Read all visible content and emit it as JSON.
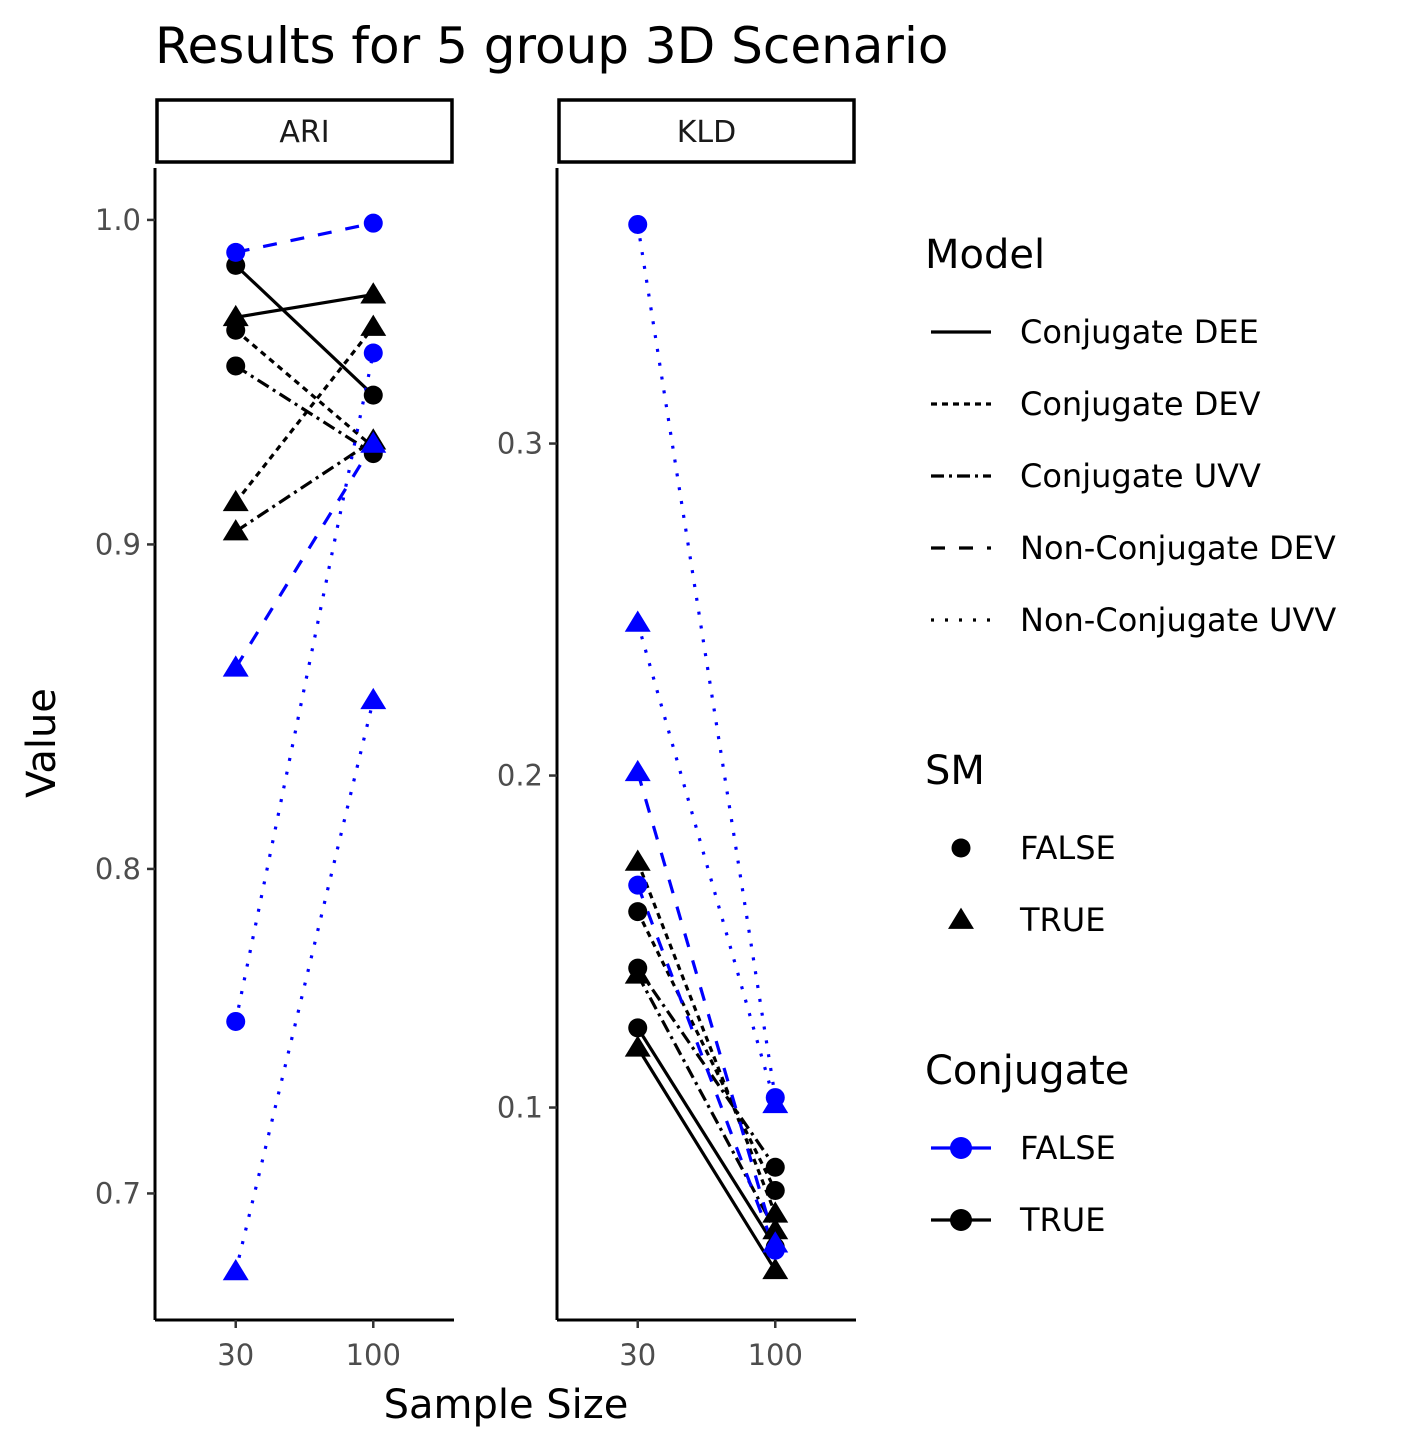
{
  "chart_data": {
    "type": "line",
    "title": "Results for 5 group 3D Scenario",
    "xlabel": "Sample Size",
    "ylabel": "Value",
    "x": [
      30,
      100
    ],
    "colors": {
      "FALSE": "#0000ff",
      "TRUE": "#000000"
    },
    "panels": [
      {
        "name": "ARI",
        "ylim": [
          0.661,
          1.016
        ],
        "yticks": [
          0.7,
          0.8,
          0.9,
          1.0
        ],
        "ytick_labels": [
          "0.7",
          "0.8",
          "0.9",
          "1.0"
        ],
        "xtick_labels": [
          "30",
          "100"
        ],
        "series": [
          {
            "model": "Conjugate DEE",
            "sm": "FALSE",
            "conjugate": "TRUE",
            "values": [
              0.986,
              0.946
            ]
          },
          {
            "model": "Conjugate DEE",
            "sm": "TRUE",
            "conjugate": "TRUE",
            "values": [
              0.97,
              0.977
            ]
          },
          {
            "model": "Conjugate DEV",
            "sm": "FALSE",
            "conjugate": "TRUE",
            "values": [
              0.966,
              0.93
            ]
          },
          {
            "model": "Conjugate DEV",
            "sm": "TRUE",
            "conjugate": "TRUE",
            "values": [
              0.913,
              0.967
            ]
          },
          {
            "model": "Conjugate UVV",
            "sm": "FALSE",
            "conjugate": "TRUE",
            "values": [
              0.955,
              0.928
            ]
          },
          {
            "model": "Conjugate UVV",
            "sm": "TRUE",
            "conjugate": "TRUE",
            "values": [
              0.904,
              0.932
            ]
          },
          {
            "model": "Non-Conjugate DEV",
            "sm": "FALSE",
            "conjugate": "FALSE",
            "values": [
              0.99,
              0.999
            ]
          },
          {
            "model": "Non-Conjugate DEV",
            "sm": "TRUE",
            "conjugate": "FALSE",
            "values": [
              0.862,
              0.931
            ]
          },
          {
            "model": "Non-Conjugate UVV",
            "sm": "FALSE",
            "conjugate": "FALSE",
            "values": [
              0.753,
              0.959
            ]
          },
          {
            "model": "Non-Conjugate UVV",
            "sm": "TRUE",
            "conjugate": "FALSE",
            "values": [
              0.676,
              0.852
            ]
          }
        ]
      },
      {
        "name": "KLD",
        "ylim": [
          0.036,
          0.383
        ],
        "yticks": [
          0.1,
          0.2,
          0.3
        ],
        "ytick_labels": [
          "0.1",
          "0.2",
          "0.3"
        ],
        "xtick_labels": [
          "30",
          "100"
        ],
        "series": [
          {
            "model": "Conjugate DEE",
            "sm": "FALSE",
            "conjugate": "TRUE",
            "values": [
              0.124,
              0.058
            ]
          },
          {
            "model": "Conjugate DEE",
            "sm": "TRUE",
            "conjugate": "TRUE",
            "values": [
              0.118,
              0.051
            ]
          },
          {
            "model": "Conjugate DEV",
            "sm": "FALSE",
            "conjugate": "TRUE",
            "values": [
              0.159,
              0.075
            ]
          },
          {
            "model": "Conjugate DEV",
            "sm": "TRUE",
            "conjugate": "TRUE",
            "values": [
              0.174,
              0.068
            ]
          },
          {
            "model": "Conjugate UVV",
            "sm": "FALSE",
            "conjugate": "TRUE",
            "values": [
              0.142,
              0.082
            ]
          },
          {
            "model": "Conjugate UVV",
            "sm": "TRUE",
            "conjugate": "TRUE",
            "values": [
              0.14,
              0.063
            ]
          },
          {
            "model": "Non-Conjugate DEV",
            "sm": "FALSE",
            "conjugate": "FALSE",
            "values": [
              0.167,
              0.057
            ]
          },
          {
            "model": "Non-Conjugate DEV",
            "sm": "TRUE",
            "conjugate": "FALSE",
            "values": [
              0.201,
              0.059
            ]
          },
          {
            "model": "Non-Conjugate UVV",
            "sm": "FALSE",
            "conjugate": "FALSE",
            "values": [
              0.366,
              0.103
            ]
          },
          {
            "model": "Non-Conjugate UVV",
            "sm": "TRUE",
            "conjugate": "FALSE",
            "values": [
              0.246,
              0.101
            ]
          }
        ]
      }
    ],
    "legend": {
      "placement": "right",
      "model": {
        "title": "Model",
        "items": [
          {
            "label": "Conjugate DEE",
            "linetype": "solid"
          },
          {
            "label": "Conjugate DEV",
            "linetype": "dotted-dense"
          },
          {
            "label": "Conjugate UVV",
            "linetype": "dashdot"
          },
          {
            "label": "Non-Conjugate DEV",
            "linetype": "dashed"
          },
          {
            "label": "Non-Conjugate UVV",
            "linetype": "dotted"
          }
        ]
      },
      "sm": {
        "title": "SM",
        "items": [
          {
            "label": "FALSE",
            "shape": "circle"
          },
          {
            "label": "TRUE",
            "shape": "triangle"
          }
        ]
      },
      "conjugate": {
        "title": "Conjugate",
        "items": [
          {
            "label": "FALSE",
            "color": "#0000ff"
          },
          {
            "label": "TRUE",
            "color": "#000000"
          }
        ]
      }
    }
  }
}
